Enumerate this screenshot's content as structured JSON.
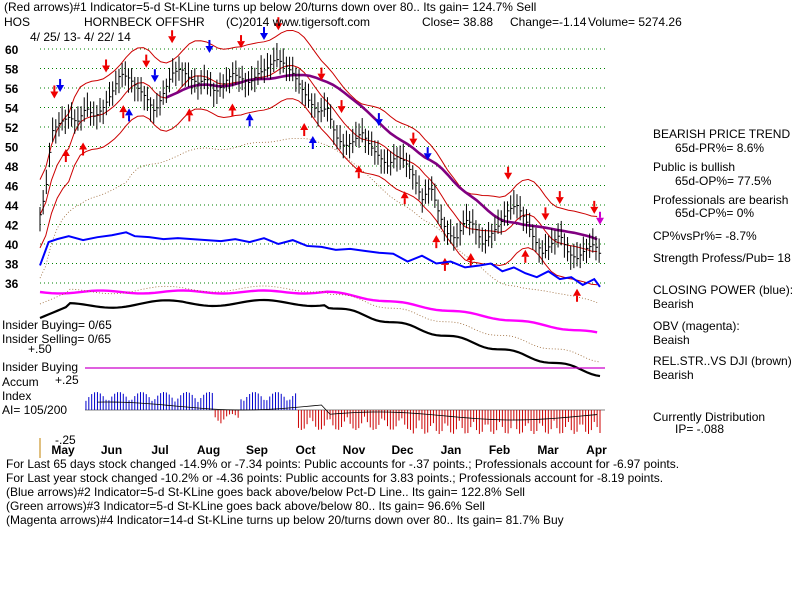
{
  "header": {
    "line1": "(Red arrows)#1 Indicator=5-d St-KLine turns up below 20/turns down over 80.. Its gain= 124.7% Sell",
    "symbol": "HOS",
    "name": "HORNBECK OFFSHR",
    "copyright": "(C)2014 www.tigersoft.com",
    "close": "Close=  38.88",
    "change": "Change=-1.14",
    "volume": "Volume= 5274.26",
    "daterange": "4/ 25/ 13-  4/ 22/ 14"
  },
  "right_panel": {
    "trend_title": "BEARISH PRICE TREND",
    "pr": "65d-PR%=  8.6%",
    "public": "Public is bullish",
    "op": "65d-OP%=  77.5%",
    "pros": "Professionals are bearish",
    "cp": "65d-CP%=  0%",
    "cpvspr": "CP%vsPr%=  -8.7%",
    "strength": "Strength Profess/Pub= 18",
    "closing_power": "CLOSING POWER (blue):",
    "closing_power_val": "Bearish",
    "obv": "OBV (magenta):",
    "obv_val": "Beaish",
    "relstr": "REL.STR..VS DJI (brown)",
    "relstr_val": "Bearish",
    "distribution": "Currently Distribution",
    "ip": "IP=  -.088"
  },
  "left_labels": {
    "insider_buying_count": "Insider Buying= 0/65",
    "insider_selling_count": "Insider Selling= 0/65",
    "plus50": "+.50",
    "insider_buying": "Insider Buying",
    "accum": "Accum",
    "plus25": "+.25",
    "index": "Index",
    "ai": "AI= 105/200",
    "minus25": "-.25"
  },
  "footer": {
    "l1": "For Last 65 days stock changed -14.9% or -7.34 points:  Public accounts for -.37 points.;  Professionals account for -6.97 points.",
    "l2": "For Last year stock changed -10.2% or -4.36 points:  Public accounts for  3.83 points.;  Professionals account for -8.19 points.",
    "l3": "(Blue arrows)#2 Indicator=5-d St-KLine goes back above/below Pct-D Line.. Its gain= 122.8% Sell",
    "l4": "(Green arrows)#3 Indicator=5-d St-KLine goes back above/below 80.. Its gain= 96.6% Sell",
    "l5": "(Magenta arrows)#4 Indicator=14-d St-KLine turns up below 20/turns down over 80.. Its gain= 81.7% Buy"
  },
  "colors": {
    "price": "#000000",
    "band": "#cc0000",
    "ma": "#800080",
    "closing_power": "#0000ff",
    "obv": "#ff00ff",
    "relstr": "#000000",
    "accum_pos": "#0000cc",
    "accum_neg": "#cc0000",
    "grid": "#008000"
  },
  "chart_data": {
    "type": "line",
    "ylim": [
      35,
      61
    ],
    "y_ticks": [
      60,
      58,
      56,
      54,
      52,
      50,
      48,
      46,
      44,
      42,
      40,
      38,
      36
    ],
    "months": [
      "May",
      "Jun",
      "Jul",
      "Aug",
      "Sep",
      "Oct",
      "Nov",
      "Dec",
      "Jan",
      "Feb",
      "Mar",
      "Apr"
    ],
    "price_series": [
      [
        0,
        43
      ],
      [
        4,
        45.5
      ],
      [
        8,
        51.5
      ],
      [
        14,
        52.5
      ],
      [
        20,
        53
      ],
      [
        26,
        52.5
      ],
      [
        32,
        54
      ],
      [
        38,
        53
      ],
      [
        44,
        54
      ],
      [
        50,
        55.5
      ],
      [
        56,
        57.5
      ],
      [
        62,
        57
      ],
      [
        68,
        56
      ],
      [
        74,
        55
      ],
      [
        80,
        53.5
      ],
      [
        86,
        55.5
      ],
      [
        92,
        57.5
      ],
      [
        98,
        58
      ],
      [
        104,
        57
      ],
      [
        110,
        56.5
      ],
      [
        116,
        57
      ],
      [
        122,
        55.5
      ],
      [
        128,
        56.5
      ],
      [
        134,
        57.5
      ],
      [
        140,
        57
      ],
      [
        146,
        56.5
      ],
      [
        152,
        57.5
      ],
      [
        158,
        58
      ],
      [
        164,
        59
      ],
      [
        170,
        58.5
      ],
      [
        176,
        57.5
      ],
      [
        182,
        56
      ],
      [
        188,
        54.5
      ],
      [
        194,
        53.5
      ],
      [
        200,
        54
      ],
      [
        206,
        51
      ],
      [
        212,
        50
      ],
      [
        218,
        50.5
      ],
      [
        224,
        51.5
      ],
      [
        230,
        50
      ],
      [
        236,
        49
      ],
      [
        242,
        48
      ],
      [
        248,
        49
      ],
      [
        254,
        48.5
      ],
      [
        260,
        47
      ],
      [
        266,
        44.5
      ],
      [
        272,
        46
      ],
      [
        278,
        43
      ],
      [
        284,
        41
      ],
      [
        290,
        40.5
      ],
      [
        296,
        42.5
      ],
      [
        302,
        42
      ],
      [
        308,
        40
      ],
      [
        314,
        41
      ],
      [
        320,
        42
      ],
      [
        326,
        43.5
      ],
      [
        332,
        44
      ],
      [
        338,
        42.5
      ],
      [
        344,
        40.5
      ],
      [
        350,
        39
      ],
      [
        356,
        40
      ],
      [
        362,
        41
      ],
      [
        368,
        39
      ],
      [
        374,
        38.5
      ],
      [
        380,
        39.5
      ],
      [
        386,
        40
      ],
      [
        390,
        38.88
      ]
    ],
    "closing_power_series": [
      [
        0,
        37.8
      ],
      [
        6,
        40.2
      ],
      [
        12,
        40.5
      ],
      [
        20,
        40.8
      ],
      [
        30,
        40.4
      ],
      [
        40,
        40.7
      ],
      [
        50,
        40.9
      ],
      [
        60,
        41.2
      ],
      [
        66,
        40.8
      ],
      [
        76,
        40.7
      ],
      [
        86,
        40.5
      ],
      [
        96,
        40.6
      ],
      [
        106,
        40.5
      ],
      [
        116,
        40.4
      ],
      [
        126,
        40.3
      ],
      [
        136,
        40.5
      ],
      [
        146,
        40.2
      ],
      [
        156,
        40.6
      ],
      [
        166,
        40.0
      ],
      [
        176,
        40.4
      ],
      [
        186,
        39.8
      ],
      [
        196,
        39.7
      ],
      [
        206,
        39.4
      ],
      [
        216,
        39.5
      ],
      [
        226,
        39.3
      ],
      [
        236,
        39.1
      ],
      [
        246,
        39.0
      ],
      [
        256,
        38.2
      ],
      [
        266,
        38.8
      ],
      [
        276,
        38.0
      ],
      [
        286,
        38.2
      ],
      [
        296,
        37.6
      ],
      [
        306,
        37.8
      ],
      [
        314,
        38.0
      ],
      [
        322,
        37.2
      ],
      [
        330,
        37.6
      ],
      [
        338,
        37.0
      ],
      [
        346,
        36.6
      ],
      [
        354,
        37.2
      ],
      [
        362,
        36.4
      ],
      [
        370,
        36.6
      ],
      [
        378,
        35.8
      ],
      [
        386,
        36.4
      ],
      [
        390,
        35.6
      ]
    ]
  }
}
